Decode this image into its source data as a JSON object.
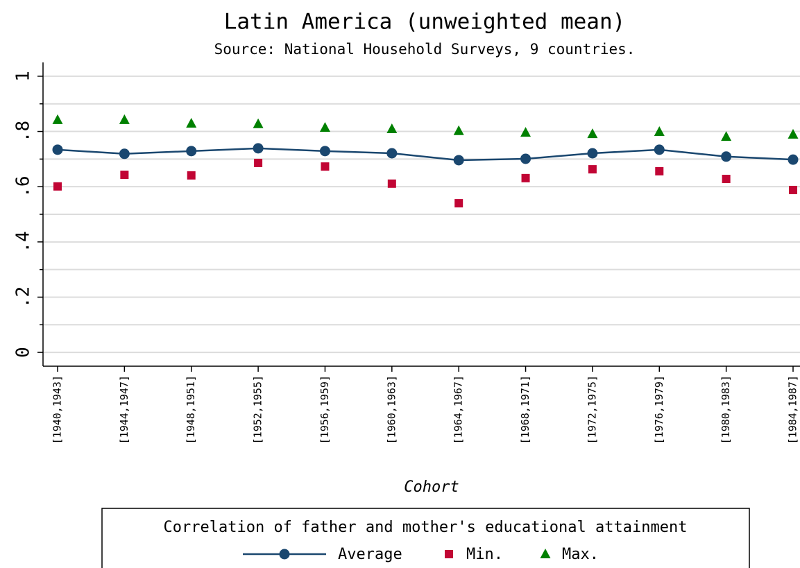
{
  "chart_data": {
    "type": "line",
    "title": "Latin America (unweighted mean)",
    "subtitle": "Source: National Household Surveys, 9 countries.",
    "x_label": "Cohort",
    "legend_title": "Correlation of father and mother's educational attainment",
    "categories": [
      "[1940,1943]",
      "[1944,1947]",
      "[1948,1951]",
      "[1952,1955]",
      "[1956,1959]",
      "[1960,1963]",
      "[1964,1967]",
      "[1968,1971]",
      "[1972,1975]",
      "[1976,1979]",
      "[1980,1983]",
      "[1984,1987]"
    ],
    "series": [
      {
        "name": "Average",
        "color": "#1a476f",
        "marker": "circle",
        "line": true,
        "values": [
          0.734,
          0.719,
          0.729,
          0.739,
          0.729,
          0.721,
          0.696,
          0.701,
          0.721,
          0.734,
          0.709,
          0.698
        ]
      },
      {
        "name": "Min.",
        "color": "#c10534",
        "marker": "square",
        "line": false,
        "values": [
          0.601,
          0.643,
          0.641,
          0.686,
          0.673,
          0.611,
          0.54,
          0.631,
          0.663,
          0.656,
          0.628,
          0.588
        ]
      },
      {
        "name": "Max.",
        "color": "#008000",
        "marker": "triangle",
        "line": false,
        "values": [
          0.842,
          0.842,
          0.829,
          0.827,
          0.814,
          0.809,
          0.802,
          0.796,
          0.791,
          0.799,
          0.781,
          0.789
        ]
      }
    ],
    "ylim": [
      -0.05,
      1.05
    ],
    "yticks": [
      0,
      {
        "value": 0.2,
        "label": ".2"
      },
      {
        "value": 0.4,
        "label": ".4"
      },
      {
        "value": 0.6,
        "label": ".6"
      },
      {
        "value": 0.8,
        "label": ".8"
      },
      1
    ],
    "yminorticks": [
      0.1,
      0.3,
      0.5,
      0.7,
      0.9
    ],
    "grid": true
  }
}
